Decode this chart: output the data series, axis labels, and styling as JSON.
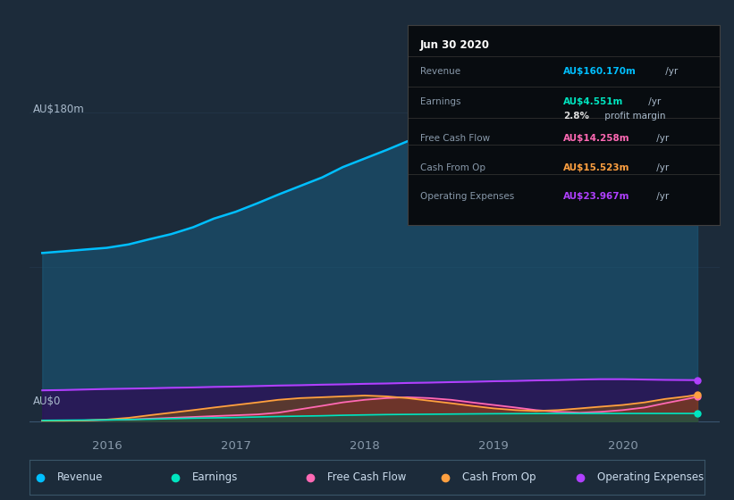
{
  "bg_color": "#1c2b3a",
  "plot_bg_color": "#1c2b3a",
  "title_label": "AU$180m",
  "zero_label": "AU$0",
  "x_years": [
    2015.5,
    2015.67,
    2015.83,
    2016.0,
    2016.17,
    2016.33,
    2016.5,
    2016.67,
    2016.83,
    2017.0,
    2017.17,
    2017.33,
    2017.5,
    2017.67,
    2017.83,
    2018.0,
    2018.17,
    2018.33,
    2018.5,
    2018.67,
    2018.83,
    2019.0,
    2019.17,
    2019.33,
    2019.5,
    2019.67,
    2019.83,
    2020.0,
    2020.17,
    2020.33,
    2020.5,
    2020.58
  ],
  "revenue": [
    98,
    99,
    100,
    101,
    103,
    106,
    109,
    113,
    118,
    122,
    127,
    132,
    137,
    142,
    148,
    153,
    158,
    163,
    167,
    170,
    172,
    174,
    175,
    176,
    175,
    174,
    172,
    170,
    167,
    164,
    161,
    160.17
  ],
  "earnings": [
    0.5,
    0.6,
    0.7,
    0.8,
    1.0,
    1.2,
    1.5,
    1.8,
    2.0,
    2.2,
    2.5,
    2.8,
    3.0,
    3.2,
    3.5,
    3.7,
    3.9,
    4.0,
    4.1,
    4.2,
    4.3,
    4.4,
    4.45,
    4.5,
    4.55,
    4.55,
    4.55,
    4.55,
    4.55,
    4.551,
    4.551,
    4.551
  ],
  "free_cash_flow": [
    0.5,
    0.5,
    0.5,
    0.8,
    1.0,
    1.5,
    2.0,
    2.5,
    3.0,
    3.5,
    4.0,
    5.0,
    7.0,
    9.0,
    11.0,
    12.5,
    13.5,
    14.0,
    13.5,
    12.5,
    11.0,
    9.5,
    8.0,
    6.5,
    5.5,
    5.0,
    5.5,
    6.5,
    8.0,
    10.5,
    13.0,
    14.258
  ],
  "cash_from_op": [
    0.3,
    0.3,
    0.5,
    1.0,
    2.0,
    3.5,
    5.0,
    6.5,
    8.0,
    9.5,
    11.0,
    12.5,
    13.5,
    14.0,
    14.5,
    15.0,
    14.5,
    13.5,
    12.0,
    10.5,
    9.0,
    7.5,
    6.5,
    6.0,
    6.5,
    7.5,
    8.5,
    9.5,
    11.0,
    13.0,
    14.5,
    15.523
  ],
  "operating_expenses": [
    18.0,
    18.2,
    18.5,
    18.8,
    19.0,
    19.2,
    19.5,
    19.7,
    20.0,
    20.2,
    20.5,
    20.8,
    21.0,
    21.3,
    21.5,
    21.8,
    22.0,
    22.3,
    22.5,
    22.8,
    23.0,
    23.3,
    23.5,
    23.8,
    24.0,
    24.3,
    24.5,
    24.5,
    24.3,
    24.1,
    24.0,
    23.967
  ],
  "revenue_color": "#00bfff",
  "earnings_color": "#00e5c0",
  "free_cash_flow_color": "#ff69b4",
  "cash_from_op_color": "#ffa040",
  "operating_expenses_color": "#b040ff",
  "revenue_fill": "#1a5070",
  "opex_fill": "#3a1060",
  "ylim_max": 190,
  "ylim_min": -8,
  "xlim_min": 2015.4,
  "xlim_max": 2020.75,
  "xticks": [
    2016,
    2017,
    2018,
    2019,
    2020
  ],
  "grid_y_major": 180,
  "grid_y_zero": 0,
  "tooltip_title": "Jun 30 2020",
  "legend_items": [
    {
      "label": "Revenue",
      "color": "#00bfff"
    },
    {
      "label": "Earnings",
      "color": "#00e5c0"
    },
    {
      "label": "Free Cash Flow",
      "color": "#ff69b4"
    },
    {
      "label": "Cash From Op",
      "color": "#ffa040"
    },
    {
      "label": "Operating Expenses",
      "color": "#b040ff"
    }
  ]
}
